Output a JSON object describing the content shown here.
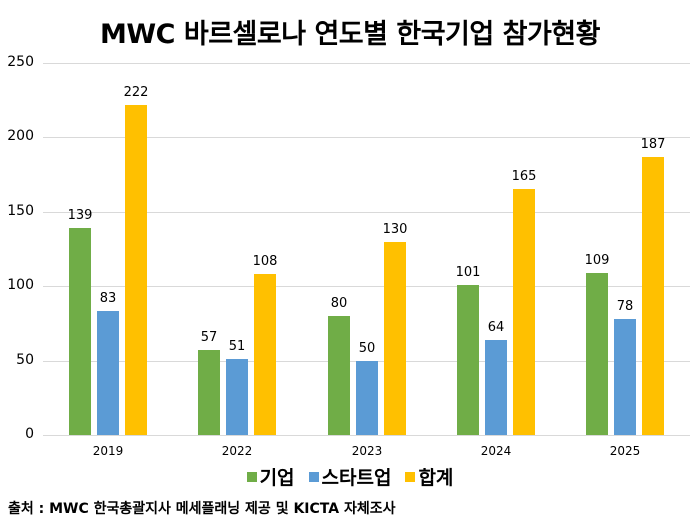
{
  "chart_data": {
    "type": "bar",
    "title": "MWC 바르셀로나 연도별 한국기업 참가현황",
    "categories": [
      "2019",
      "2022",
      "2023",
      "2024",
      "2025"
    ],
    "series": [
      {
        "name": "기업",
        "color": "#70ad47",
        "values": [
          139,
          57,
          80,
          101,
          109
        ]
      },
      {
        "name": "스타트업",
        "color": "#5b9bd5",
        "values": [
          83,
          51,
          50,
          64,
          78
        ]
      },
      {
        "name": "합계",
        "color": "#ffc000",
        "values": [
          222,
          108,
          130,
          165,
          187
        ]
      }
    ],
    "xlabel": "",
    "ylabel": "",
    "ylim": [
      0,
      250
    ],
    "yticks": [
      0,
      50,
      100,
      150,
      200,
      250
    ],
    "grid": true,
    "legend_position": "bottom",
    "data_labels": true
  },
  "source_note": "출처 : MWC 한국총괄지사 메세플래닝 제공 및 KICTA 자체조사"
}
